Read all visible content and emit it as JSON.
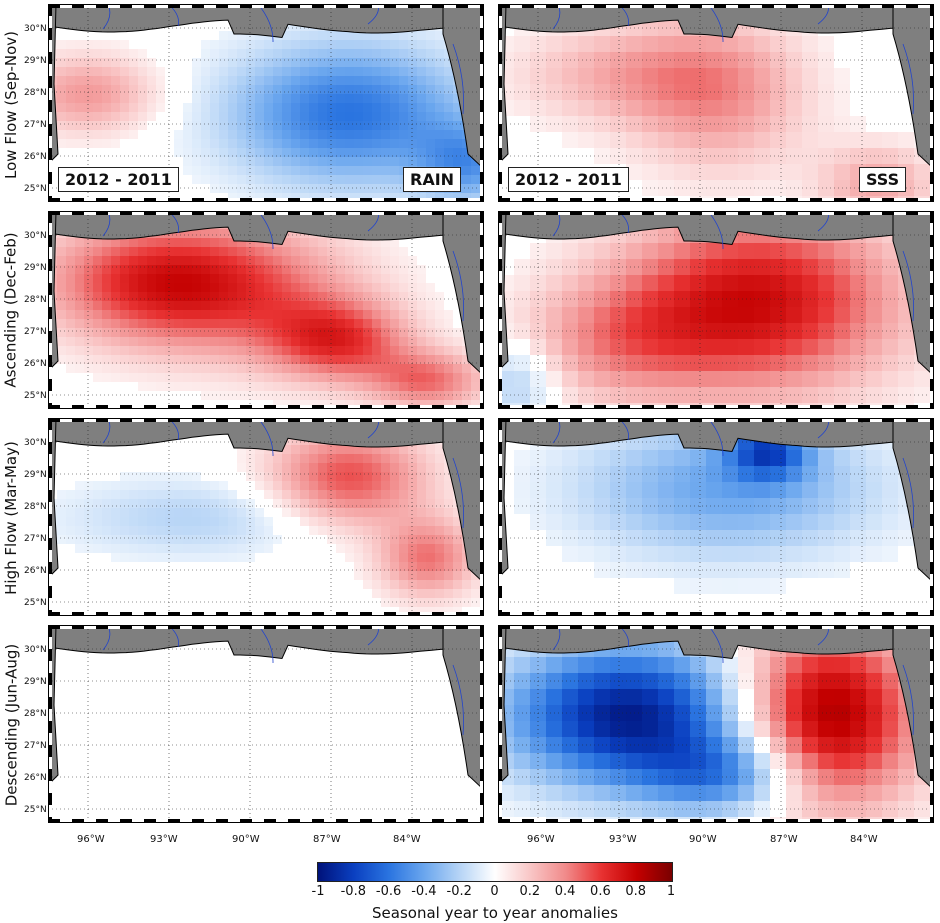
{
  "rows": [
    {
      "label": "Low Flow (Sep-Nov)"
    },
    {
      "label": "Ascending (Dec-Feb)"
    },
    {
      "label": "High Flow (Mar-May)"
    },
    {
      "label": "Descending (Jun-Aug)"
    }
  ],
  "panels": {
    "rain_label": "RAIN",
    "sss_label": "SSS",
    "year_label": "2012 - 2011"
  },
  "latitude_ticks": [
    "30°N",
    "29°N",
    "28°N",
    "27°N",
    "26°N",
    "25°N"
  ],
  "longitude_ticks": [
    "96°W",
    "93°W",
    "90°W",
    "87°W",
    "84°W"
  ],
  "colorbar": {
    "title": "Seasonal year to year anomalies",
    "ticks": [
      "-1",
      "-0.8",
      "-0.6",
      "-0.4",
      "-0.2",
      "0",
      "0.2",
      "0.4",
      "0.6",
      "0.8",
      "1"
    ],
    "colors": [
      "#00127a",
      "#0a3fc0",
      "#2a74e0",
      "#6aa6ee",
      "#b6d4f6",
      "#ffffff",
      "#f9c6c6",
      "#f18a8a",
      "#e83232",
      "#c40000",
      "#7a0000"
    ]
  },
  "land_color": "#7f7f7f",
  "coast_color": "#000000",
  "river_color": "#2244cc"
}
